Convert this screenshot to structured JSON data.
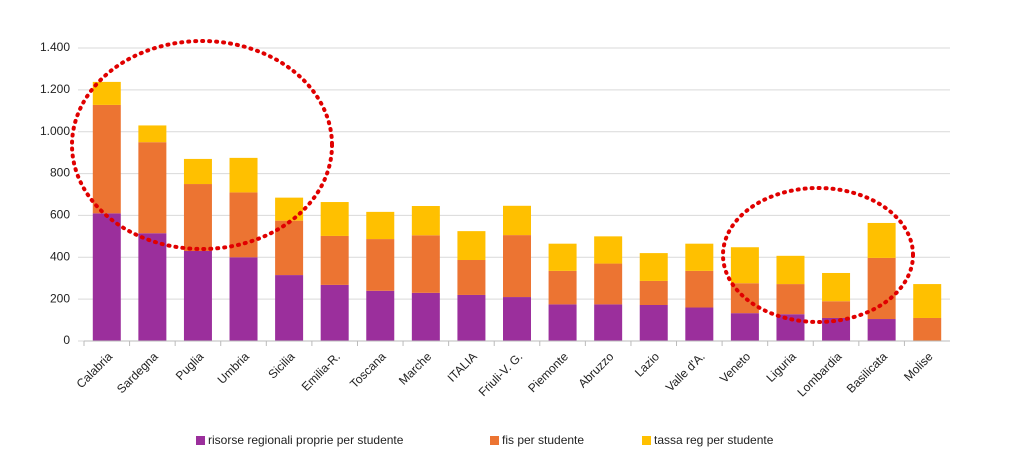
{
  "chart_data": {
    "type": "stacked_bar",
    "categories": [
      "Calabria",
      "Sardegna",
      "Puglia",
      "Umbria",
      "Sicilia",
      "Emilia-R.",
      "Toscana",
      "Marche",
      "ITALIA",
      "Friuli-V. G.",
      "Piemonte",
      "Abruzzo",
      "Lazio",
      "Valle d'A.",
      "Veneto",
      "Liguria",
      "Lombardia",
      "Basilicata",
      "Molise"
    ],
    "series": [
      {
        "name": "risorse regionali proprie per studente",
        "color": "#9b2f9c",
        "values": [
          610,
          515,
          430,
          400,
          315,
          268,
          240,
          230,
          220,
          210,
          175,
          175,
          172,
          160,
          133,
          128,
          110,
          105,
          0
        ]
      },
      {
        "name": "fis per studente",
        "color": "#ec7432",
        "values": [
          518,
          435,
          320,
          310,
          260,
          234,
          247,
          275,
          167,
          296,
          160,
          195,
          115,
          175,
          143,
          144,
          80,
          292,
          110
        ]
      },
      {
        "name": "tassa reg per studente",
        "color": "#ffc000",
        "values": [
          110,
          80,
          120,
          165,
          110,
          162,
          130,
          140,
          138,
          140,
          130,
          130,
          133,
          130,
          172,
          135,
          135,
          167,
          162
        ]
      }
    ],
    "ylim": [
      0,
      1400
    ],
    "yticks": [
      0,
      200,
      400,
      600,
      800,
      {
        "value": 1000,
        "label": "1.000"
      },
      {
        "value": 1200,
        "label": "1.200"
      },
      {
        "value": 1400,
        "label": "1.400"
      }
    ],
    "grid": true,
    "legend": "bottom"
  }
}
